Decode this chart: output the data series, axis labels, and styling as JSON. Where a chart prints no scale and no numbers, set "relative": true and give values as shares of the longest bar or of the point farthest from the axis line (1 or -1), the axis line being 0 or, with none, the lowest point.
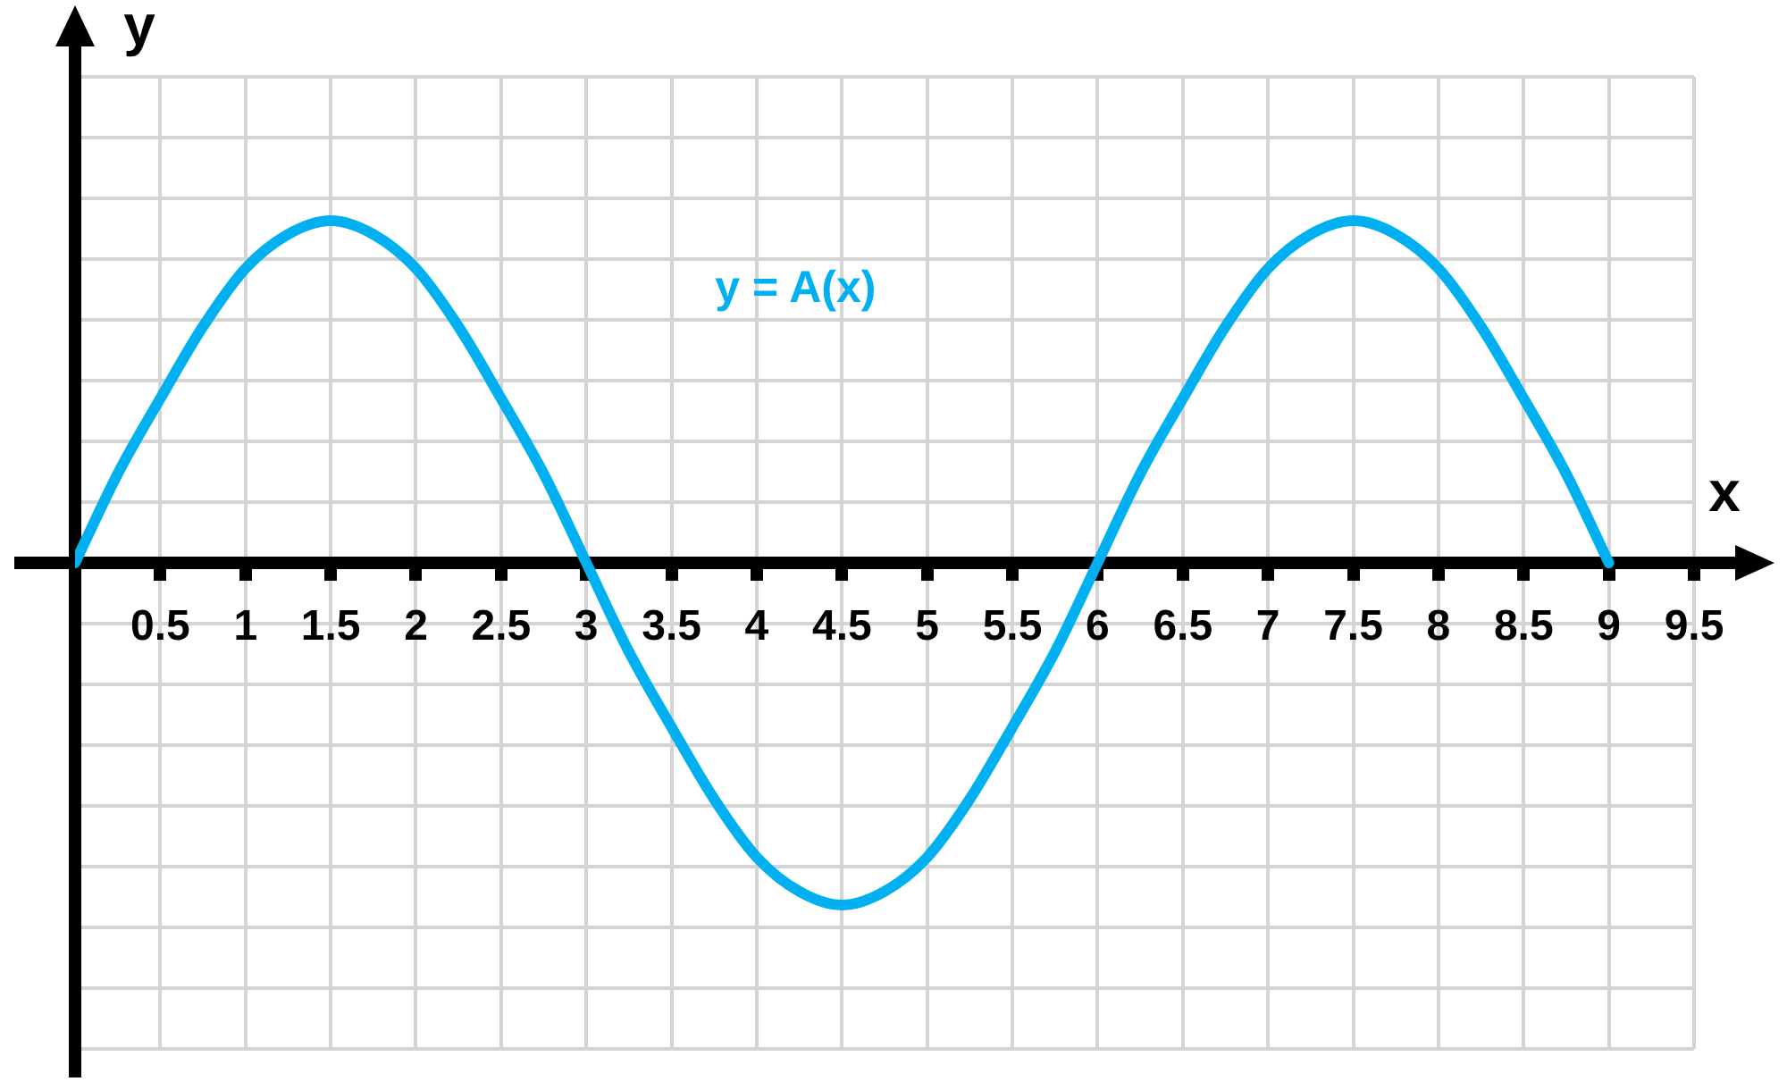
{
  "chart_data": {
    "type": "line",
    "xlabel": "x",
    "ylabel": "y",
    "x": [
      0,
      0.25,
      0.5,
      0.75,
      1,
      1.25,
      1.5,
      1.75,
      2,
      2.25,
      2.5,
      2.75,
      3,
      3.25,
      3.5,
      3.75,
      4,
      4.25,
      4.5,
      4.75,
      5,
      5.25,
      5.5,
      5.75,
      6,
      6.25,
      6.5,
      6.75,
      7,
      7.25,
      7.5,
      7.75,
      8,
      8.25,
      8.5,
      8.75,
      9
    ],
    "series": [
      {
        "name": "y = A(x)",
        "color": "#00b0f0",
        "values": [
          0,
          0.26,
          0.48,
          0.69,
          0.86,
          0.96,
          1,
          0.96,
          0.86,
          0.69,
          0.48,
          0.26,
          0,
          -0.26,
          -0.48,
          -0.69,
          -0.86,
          -0.96,
          -1,
          -0.96,
          -0.86,
          -0.69,
          -0.48,
          -0.26,
          0,
          0.26,
          0.48,
          0.69,
          0.86,
          0.96,
          1,
          0.96,
          0.86,
          0.69,
          0.48,
          0.26,
          0
        ]
      }
    ],
    "xlim": [
      0,
      9.5
    ],
    "xticks": [
      0.5,
      1,
      1.5,
      2,
      2.5,
      3,
      3.5,
      4,
      4.5,
      5,
      5.5,
      6,
      6.5,
      7,
      7.5,
      8,
      8.5,
      9,
      9.5
    ],
    "relative": true,
    "grid": true,
    "marker": "none",
    "line_style": "solid"
  }
}
